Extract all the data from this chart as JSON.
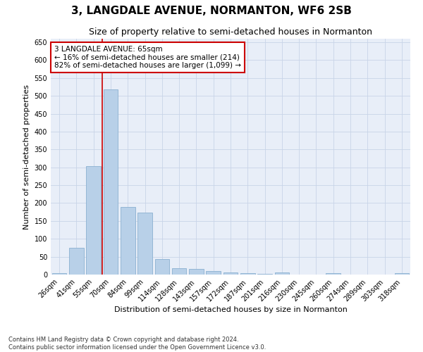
{
  "title": "3, LANGDALE AVENUE, NORMANTON, WF6 2SB",
  "subtitle": "Size of property relative to semi-detached houses in Normanton",
  "xlabel": "Distribution of semi-detached houses by size in Normanton",
  "ylabel": "Number of semi-detached properties",
  "categories": [
    "26sqm",
    "41sqm",
    "55sqm",
    "70sqm",
    "84sqm",
    "99sqm",
    "114sqm",
    "128sqm",
    "143sqm",
    "157sqm",
    "172sqm",
    "187sqm",
    "201sqm",
    "216sqm",
    "230sqm",
    "245sqm",
    "260sqm",
    "274sqm",
    "289sqm",
    "303sqm",
    "318sqm"
  ],
  "values": [
    3,
    74,
    304,
    519,
    190,
    173,
    43,
    17,
    15,
    10,
    5,
    4,
    1,
    6,
    0,
    0,
    4,
    0,
    0,
    0,
    3
  ],
  "bar_color": "#b8d0e8",
  "bar_edge_color": "#8ab0d0",
  "annotation_text_line1": "3 LANGDALE AVENUE: 65sqm",
  "annotation_text_line2": "← 16% of semi-detached houses are smaller (214)",
  "annotation_text_line3": "82% of semi-detached houses are larger (1,099) →",
  "ylim": [
    0,
    660
  ],
  "yticks": [
    0,
    50,
    100,
    150,
    200,
    250,
    300,
    350,
    400,
    450,
    500,
    550,
    600,
    650
  ],
  "footer_line1": "Contains HM Land Registry data © Crown copyright and database right 2024.",
  "footer_line2": "Contains public sector information licensed under the Open Government Licence v3.0.",
  "background_color": "#ffffff",
  "plot_bg_color": "#e8eef8",
  "grid_color": "#c8d4e8",
  "title_fontsize": 11,
  "subtitle_fontsize": 9,
  "annotation_fontsize": 7.5,
  "xlabel_fontsize": 8,
  "ylabel_fontsize": 8,
  "tick_fontsize": 7,
  "footer_fontsize": 6
}
